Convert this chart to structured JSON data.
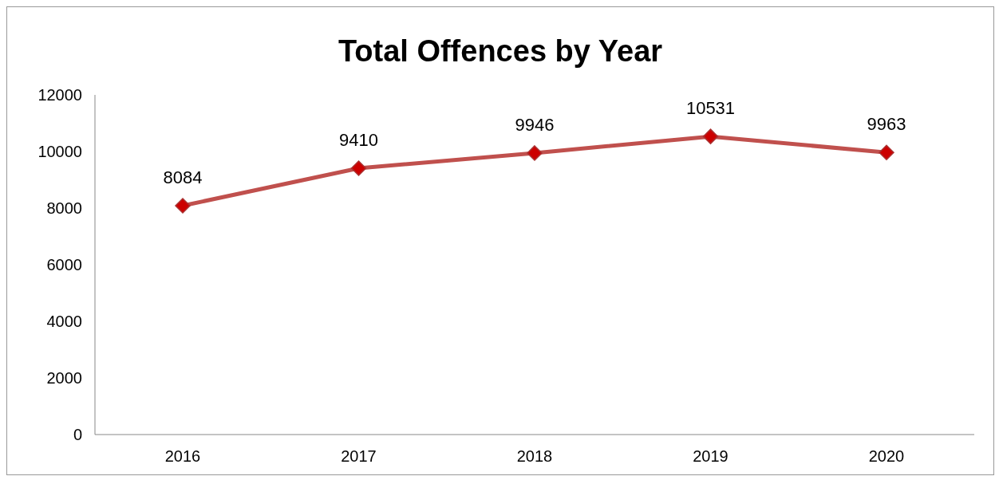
{
  "chart_data": {
    "type": "line",
    "title": "Total Offences by Year",
    "categories": [
      "2016",
      "2017",
      "2018",
      "2019",
      "2020"
    ],
    "series": [
      {
        "color": "#c0504d",
        "values": [
          8084,
          9410,
          9946,
          10531,
          9963
        ]
      }
    ],
    "ylim": [
      0,
      12000
    ],
    "yticks": [
      0,
      2000,
      4000,
      6000,
      8000,
      10000,
      12000
    ],
    "grid": false,
    "legend": false,
    "marker": "diamond",
    "line_style": "solid",
    "data_labels": true
  }
}
